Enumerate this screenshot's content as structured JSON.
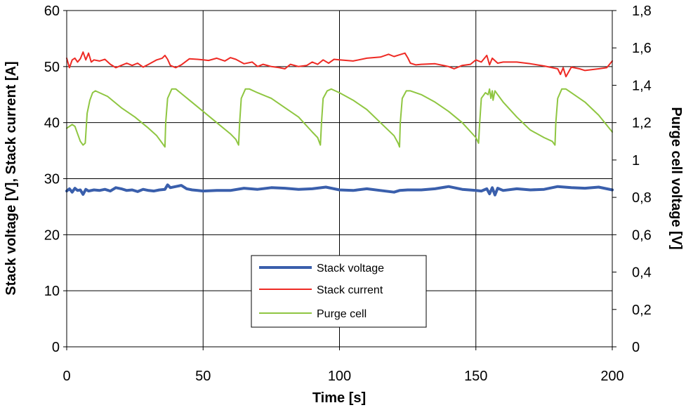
{
  "chart_data": {
    "type": "line",
    "xlabel": "Time [s]",
    "ylabel": "Stack voltage [V], Stack current [A]",
    "y2label": "Purge cell voltage [V]",
    "xlim": [
      0,
      200
    ],
    "ylim": [
      0,
      60
    ],
    "y2lim": [
      0,
      1.8
    ],
    "grid": true,
    "legend_position": "bottom-center",
    "x_ticks": [
      0,
      50,
      100,
      150,
      200
    ],
    "x_tick_labels": [
      "0",
      "50",
      "100",
      "150",
      "200"
    ],
    "y_ticks": [
      0,
      10,
      20,
      30,
      40,
      50,
      60
    ],
    "y_tick_labels": [
      "0",
      "10",
      "20",
      "30",
      "40",
      "50",
      "60"
    ],
    "y2_ticks": [
      0,
      0.2,
      0.4,
      0.6,
      0.8,
      1.0,
      1.2,
      1.4,
      1.6,
      1.8
    ],
    "y2_tick_labels": [
      "0",
      "0,2",
      "0,4",
      "0,6",
      "0,8",
      "1",
      "1,2",
      "1,4",
      "1,6",
      "1,8"
    ],
    "series": [
      {
        "name": "Stack voltage",
        "axis": "left",
        "color": "#3a5fac",
        "x": [
          0,
          1,
          2,
          3,
          4,
          5,
          6,
          7,
          8,
          10,
          12,
          14,
          16,
          18,
          20,
          22,
          24,
          26,
          28,
          30,
          32,
          34,
          36,
          37,
          38,
          40,
          42,
          44,
          46,
          48,
          50,
          55,
          60,
          65,
          70,
          75,
          80,
          85,
          90,
          95,
          100,
          105,
          110,
          115,
          120,
          122,
          125,
          130,
          135,
          140,
          145,
          150,
          152,
          154,
          155,
          156,
          157,
          158,
          160,
          165,
          170,
          175,
          180,
          185,
          190,
          195,
          200
        ],
        "values": [
          27.8,
          28.2,
          27.6,
          28.3,
          27.9,
          28.0,
          27.2,
          28.1,
          27.8,
          28.0,
          27.9,
          28.1,
          27.8,
          28.4,
          28.2,
          27.9,
          28.0,
          27.7,
          28.1,
          27.9,
          27.8,
          28.0,
          28.1,
          28.9,
          28.4,
          28.6,
          28.8,
          28.2,
          28.0,
          27.9,
          27.8,
          27.9,
          27.9,
          28.3,
          28.1,
          28.4,
          28.3,
          28.1,
          28.2,
          28.5,
          28.0,
          27.9,
          28.2,
          27.9,
          27.6,
          27.9,
          28.0,
          28.0,
          28.2,
          28.6,
          28.1,
          27.9,
          27.8,
          28.2,
          27.3,
          28.4,
          27.1,
          28.3,
          27.9,
          28.2,
          28.0,
          28.1,
          28.6,
          28.4,
          28.3,
          28.5,
          28.0
        ]
      },
      {
        "name": "Stack current",
        "axis": "left",
        "color": "#ee2a24",
        "x": [
          0,
          1,
          2,
          3,
          4,
          5,
          6,
          7,
          8,
          9,
          10,
          12,
          14,
          16,
          18,
          20,
          22,
          24,
          26,
          28,
          30,
          33,
          35,
          36,
          37,
          38,
          40,
          42,
          45,
          48,
          50,
          52,
          55,
          58,
          60,
          62,
          65,
          68,
          70,
          72,
          75,
          78,
          80,
          82,
          85,
          88,
          90,
          92,
          94,
          96,
          98,
          100,
          105,
          110,
          115,
          118,
          120,
          122,
          124,
          125,
          126,
          128,
          130,
          135,
          140,
          142,
          145,
          148,
          150,
          152,
          154,
          155,
          156,
          158,
          160,
          165,
          170,
          175,
          178,
          180,
          181,
          182,
          183,
          185,
          188,
          190,
          195,
          198,
          200
        ],
        "values": [
          51.5,
          49.8,
          51.2,
          51.5,
          50.8,
          51.4,
          52.6,
          51.2,
          52.4,
          50.8,
          51.2,
          51.0,
          51.3,
          50.4,
          49.8,
          50.2,
          50.6,
          50.2,
          50.6,
          49.9,
          50.4,
          51.2,
          51.5,
          52.0,
          51.3,
          50.2,
          49.8,
          50.3,
          51.4,
          51.3,
          51.2,
          51.1,
          51.5,
          51.0,
          51.6,
          51.3,
          50.5,
          50.8,
          50.0,
          50.4,
          50.0,
          49.8,
          49.6,
          50.4,
          50.0,
          50.2,
          50.8,
          50.4,
          51.2,
          50.6,
          51.3,
          51.2,
          51.0,
          51.5,
          51.7,
          52.2,
          51.8,
          52.1,
          52.4,
          51.6,
          50.6,
          50.3,
          50.4,
          50.5,
          50.0,
          49.6,
          50.2,
          50.4,
          51.2,
          50.8,
          52.0,
          50.3,
          51.5,
          50.6,
          50.8,
          50.8,
          50.5,
          50.1,
          49.8,
          49.6,
          48.6,
          49.8,
          48.2,
          49.9,
          49.6,
          49.3,
          49.6,
          49.8,
          51.0
        ]
      },
      {
        "name": "Purge cell",
        "axis": "right",
        "color": "#8fc641",
        "x": [
          0,
          1,
          2,
          3,
          4,
          5,
          6,
          6.8,
          7.5,
          8.5,
          9.5,
          10.5,
          15,
          20,
          25,
          30,
          33,
          35,
          36,
          36.3,
          37,
          38.5,
          40,
          45,
          50,
          55,
          60,
          62,
          63,
          63.4,
          64,
          65.5,
          67,
          70,
          75,
          80,
          85,
          90,
          92,
          93,
          93.4,
          94,
          95.5,
          97,
          100,
          105,
          110,
          115,
          120,
          121.5,
          122,
          122.3,
          123,
          124.5,
          126,
          130,
          135,
          140,
          145,
          150,
          151,
          151.4,
          152,
          153.5,
          154.5,
          155,
          155.5,
          156,
          156.3,
          157,
          158,
          160,
          165,
          170,
          175,
          178,
          179,
          179.3,
          180,
          181.5,
          183,
          185,
          190,
          195,
          200
        ],
        "values": [
          1.17,
          1.18,
          1.19,
          1.18,
          1.14,
          1.1,
          1.08,
          1.09,
          1.25,
          1.32,
          1.36,
          1.37,
          1.34,
          1.28,
          1.23,
          1.17,
          1.13,
          1.09,
          1.07,
          1.2,
          1.33,
          1.38,
          1.38,
          1.32,
          1.26,
          1.2,
          1.14,
          1.11,
          1.08,
          1.2,
          1.33,
          1.38,
          1.38,
          1.36,
          1.33,
          1.28,
          1.23,
          1.15,
          1.12,
          1.08,
          1.2,
          1.33,
          1.37,
          1.38,
          1.36,
          1.32,
          1.27,
          1.2,
          1.13,
          1.09,
          1.07,
          1.2,
          1.33,
          1.37,
          1.37,
          1.35,
          1.31,
          1.26,
          1.2,
          1.12,
          1.09,
          1.2,
          1.33,
          1.36,
          1.35,
          1.38,
          1.33,
          1.37,
          1.32,
          1.37,
          1.35,
          1.31,
          1.23,
          1.16,
          1.12,
          1.1,
          1.08,
          1.2,
          1.33,
          1.38,
          1.38,
          1.36,
          1.31,
          1.24,
          1.15
        ]
      }
    ]
  }
}
